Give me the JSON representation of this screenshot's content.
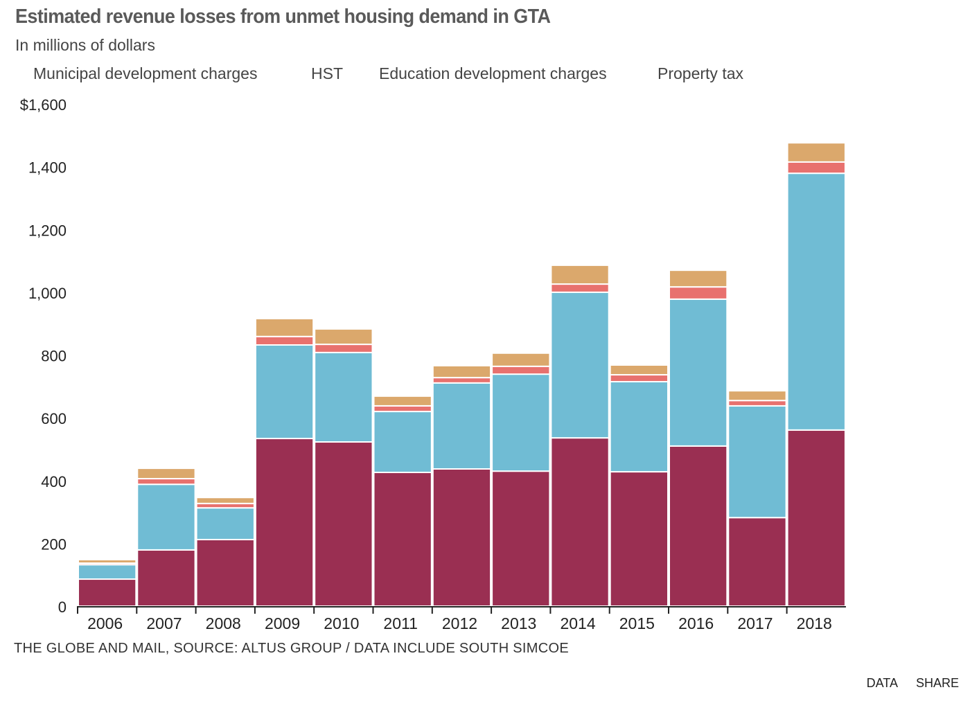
{
  "header": {
    "title": "Estimated revenue losses from unmet housing demand in GTA",
    "subtitle": "In millions of dollars"
  },
  "footer": {
    "source": "THE GLOBE AND MAIL, SOURCE: ALTUS GROUP / DATA INCLUDE SOUTH SIMCOE",
    "data_link": "DATA",
    "share_link": "SHARE"
  },
  "chart_data": {
    "type": "bar",
    "stacked": true,
    "title": "Estimated revenue losses from unmet housing demand in GTA",
    "subtitle": "In millions of dollars",
    "xlabel": "",
    "ylabel": "",
    "ylim": [
      0,
      1600
    ],
    "yticks": [
      0,
      200,
      400,
      600,
      800,
      1000,
      1200,
      1400,
      1600
    ],
    "ytick_labels": [
      "0",
      "200",
      "400",
      "600",
      "800",
      "1,000",
      "1,200",
      "1,400",
      "$1,600"
    ],
    "grid": false,
    "legend_position": "top-left",
    "categories": [
      "2006",
      "2007",
      "2008",
      "2009",
      "2010",
      "2011",
      "2012",
      "2013",
      "2014",
      "2015",
      "2016",
      "2017",
      "2018"
    ],
    "series": [
      {
        "name": "Municipal development charges",
        "color": "#9a2f52",
        "values": [
          86,
          179,
          212,
          534,
          523,
          426,
          437,
          430,
          536,
          428,
          510,
          282,
          561
        ]
      },
      {
        "name": "HST",
        "color": "#70bcd4",
        "values": [
          46,
          209,
          101,
          298,
          285,
          194,
          274,
          309,
          464,
          287,
          468,
          356,
          818
        ]
      },
      {
        "name": "Education development charges",
        "color": "#e8716e",
        "values": [
          5,
          18,
          14,
          27,
          26,
          18,
          17,
          25,
          26,
          22,
          39,
          17,
          36
        ]
      },
      {
        "name": "Property tax",
        "color": "#dba86c",
        "values": [
          11,
          33,
          19,
          57,
          49,
          31,
          38,
          42,
          60,
          31,
          53,
          31,
          61
        ]
      }
    ]
  }
}
